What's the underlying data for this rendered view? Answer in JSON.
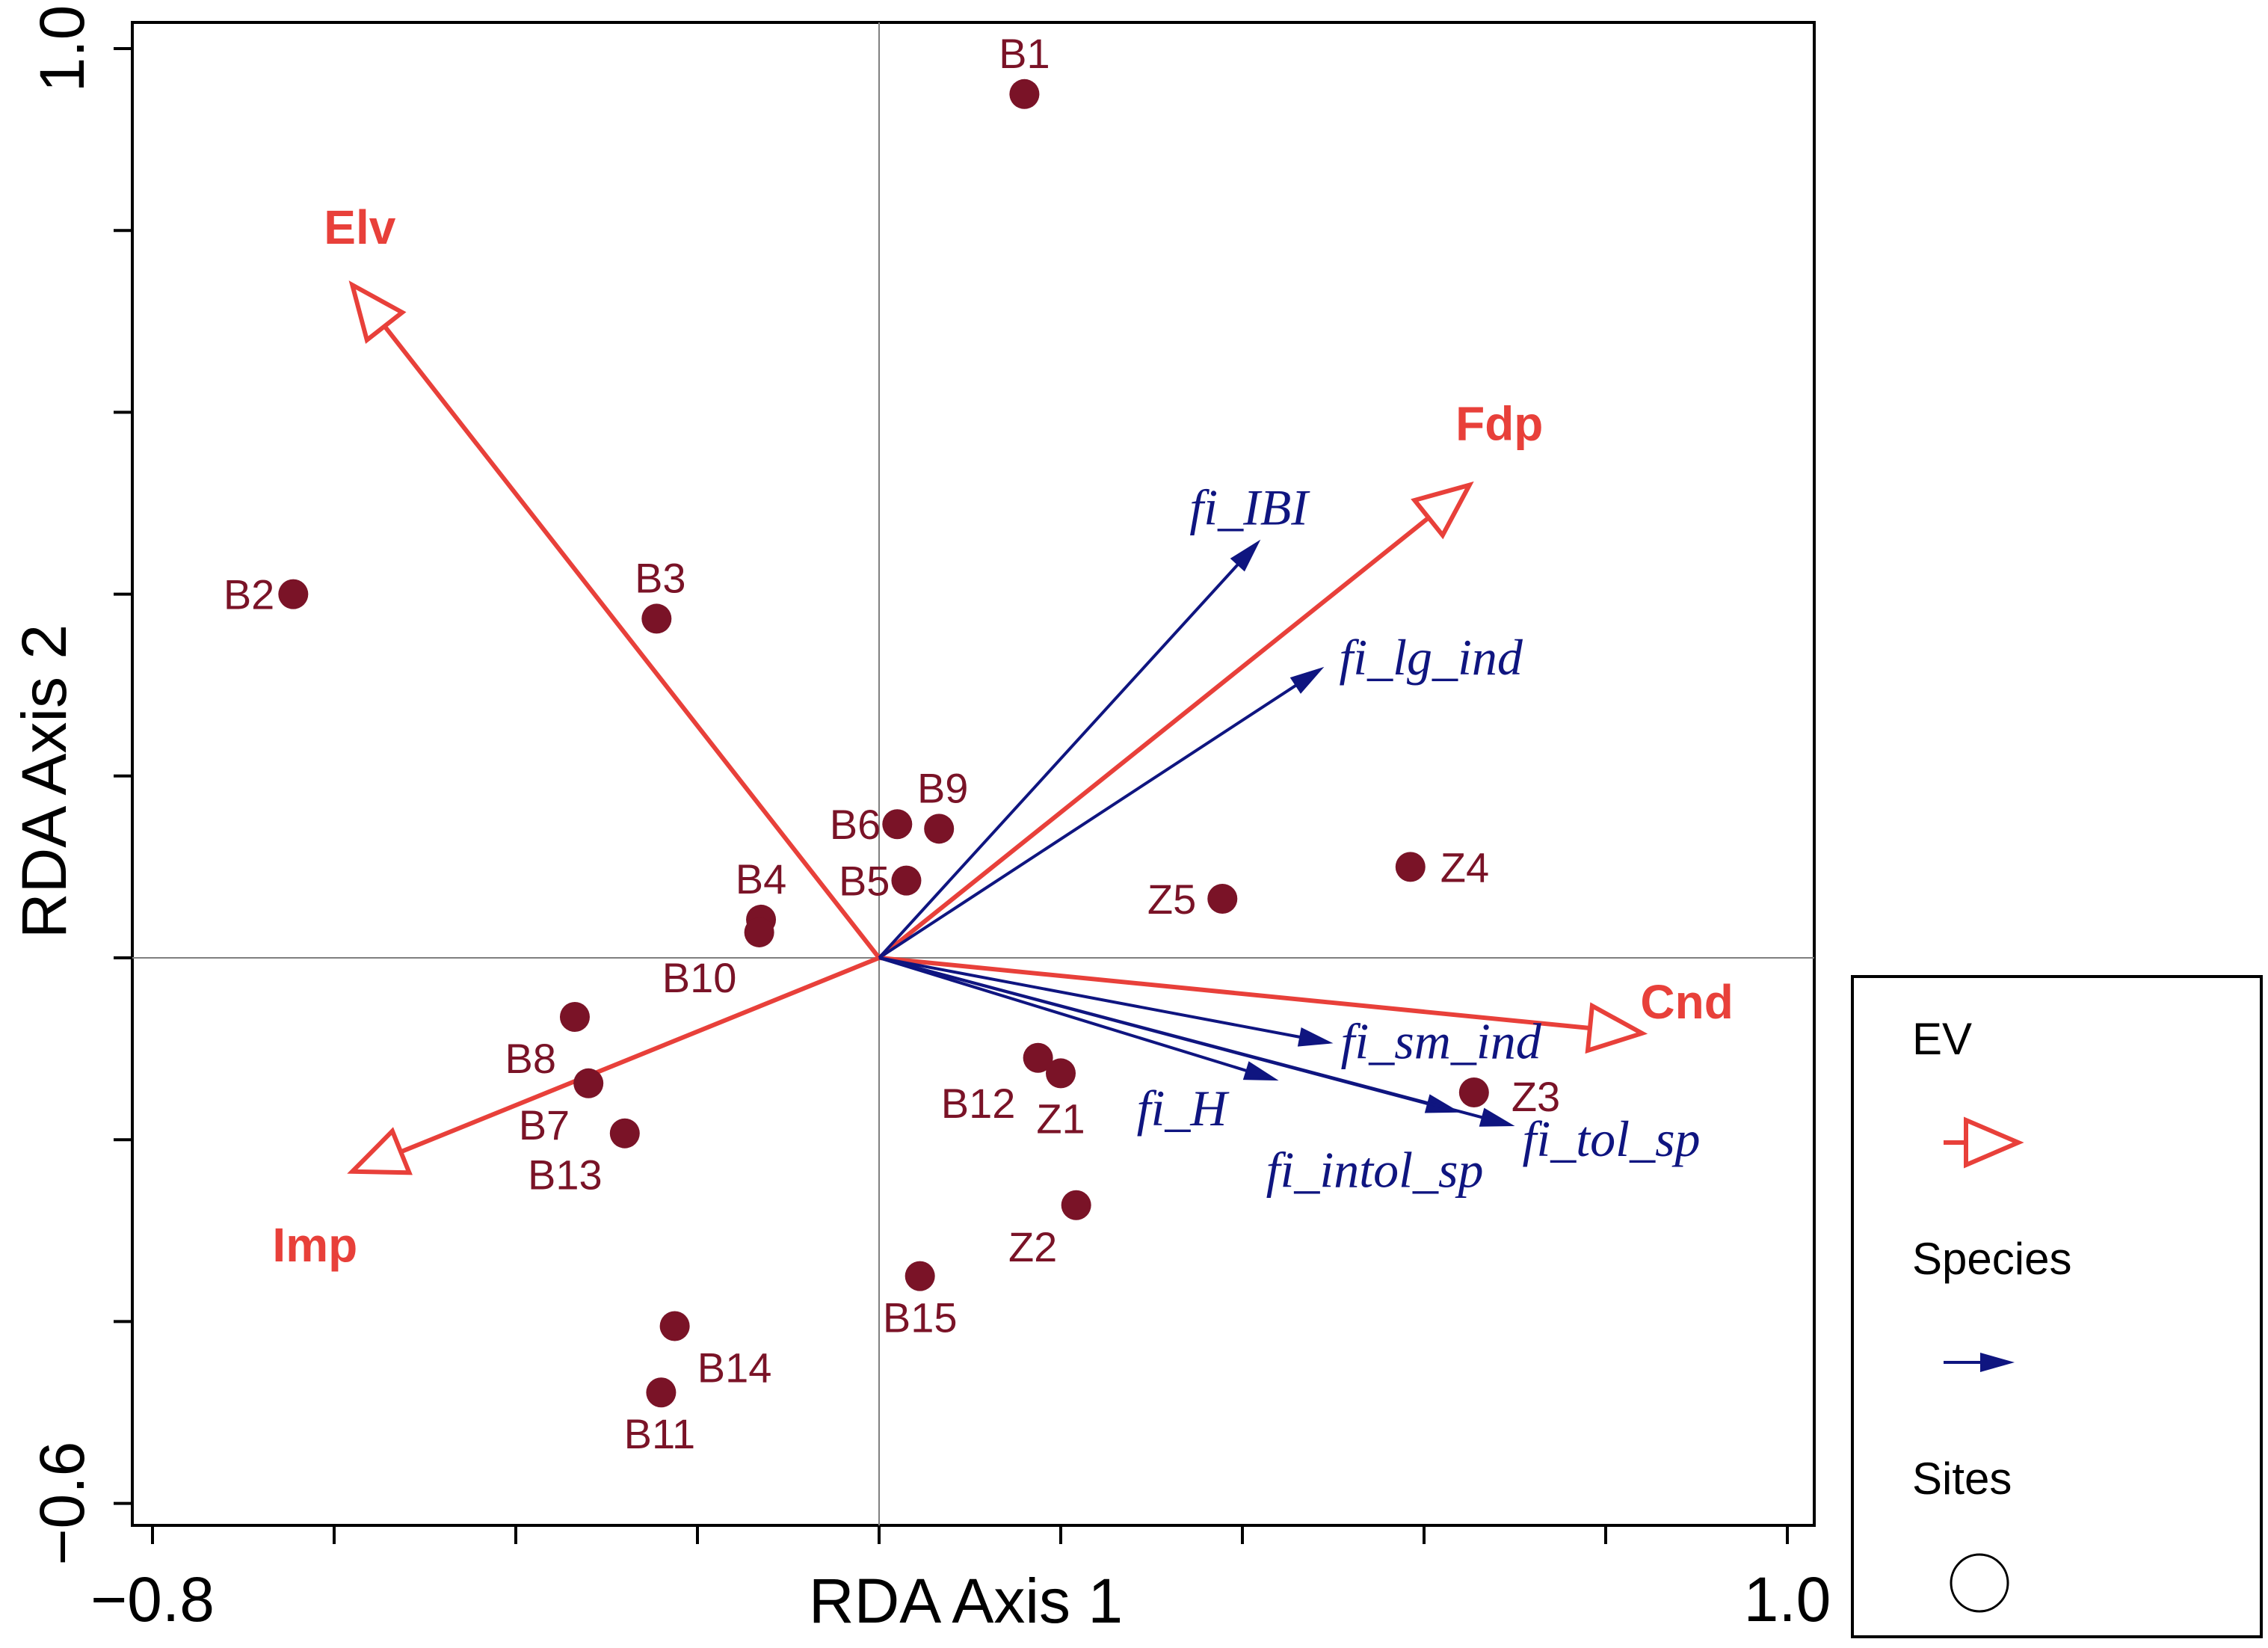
{
  "chart_data": {
    "type": "biplot",
    "title": "",
    "xlabel": "RDA Axis 1",
    "ylabel": "RDA Axis 2",
    "xlim": [
      -0.8,
      1.0
    ],
    "ylim": [
      -0.6,
      1.0
    ],
    "x_tick_labels": [
      {
        "value": -0.8,
        "label": "−0.8"
      },
      {
        "value": 1.0,
        "label": "1.0"
      }
    ],
    "y_tick_labels": [
      {
        "value": -0.6,
        "label": "−0.6"
      },
      {
        "value": 1.0,
        "label": "1.0"
      }
    ],
    "grid": false,
    "colors": {
      "ev": "#e8403a",
      "species": "#0f1580",
      "sites": "#7a1327",
      "axis": "#000000",
      "crosshair": "#808080"
    },
    "environmental_variables": [
      {
        "name": "Elv",
        "x": -0.58,
        "y": 0.74
      },
      {
        "name": "Fdp",
        "x": 0.65,
        "y": 0.52
      },
      {
        "name": "Cnd",
        "x": 0.84,
        "y": -0.083
      },
      {
        "name": "Imp",
        "x": -0.58,
        "y": -0.235
      }
    ],
    "species": [
      {
        "name": "fi_IBI",
        "x": 0.42,
        "y": 0.46
      },
      {
        "name": "fi_lg_ind",
        "x": 0.49,
        "y": 0.32
      },
      {
        "name": "fi_sm_ind",
        "x": 0.5,
        "y": -0.094
      },
      {
        "name": "fi_H",
        "x": 0.44,
        "y": -0.135
      },
      {
        "name": "fi_intol_sp",
        "x": 0.64,
        "y": -0.17
      },
      {
        "name": "fi_tol_sp",
        "x": 0.7,
        "y": -0.185
      }
    ],
    "sites": [
      {
        "name": "B1",
        "x": 0.16,
        "y": 0.95
      },
      {
        "name": "B2",
        "x": -0.645,
        "y": 0.4
      },
      {
        "name": "B3",
        "x": -0.245,
        "y": 0.373
      },
      {
        "name": "B4",
        "x": -0.13,
        "y": 0.042
      },
      {
        "name": "B5",
        "x": 0.03,
        "y": 0.085
      },
      {
        "name": "B6",
        "x": 0.02,
        "y": 0.147
      },
      {
        "name": "B7",
        "x": -0.32,
        "y": -0.138
      },
      {
        "name": "B8",
        "x": -0.335,
        "y": -0.065
      },
      {
        "name": "B9",
        "x": 0.066,
        "y": 0.142
      },
      {
        "name": "B10",
        "x": -0.132,
        "y": 0.028
      },
      {
        "name": "B11",
        "x": -0.24,
        "y": -0.478
      },
      {
        "name": "B12",
        "x": 0.175,
        "y": -0.11
      },
      {
        "name": "B13",
        "x": -0.28,
        "y": -0.193
      },
      {
        "name": "B14",
        "x": -0.225,
        "y": -0.405
      },
      {
        "name": "B15",
        "x": 0.045,
        "y": -0.35
      },
      {
        "name": "Z1",
        "x": 0.2,
        "y": -0.127
      },
      {
        "name": "Z2",
        "x": 0.217,
        "y": -0.272
      },
      {
        "name": "Z3",
        "x": 0.655,
        "y": -0.148
      },
      {
        "name": "Z4",
        "x": 0.585,
        "y": 0.1
      },
      {
        "name": "Z5",
        "x": 0.378,
        "y": 0.065
      }
    ]
  },
  "legend": {
    "placement": "right",
    "items": [
      {
        "label": "EV",
        "kind": "ev"
      },
      {
        "label": "Species",
        "kind": "species"
      },
      {
        "label": "Sites",
        "kind": "sites"
      }
    ]
  }
}
